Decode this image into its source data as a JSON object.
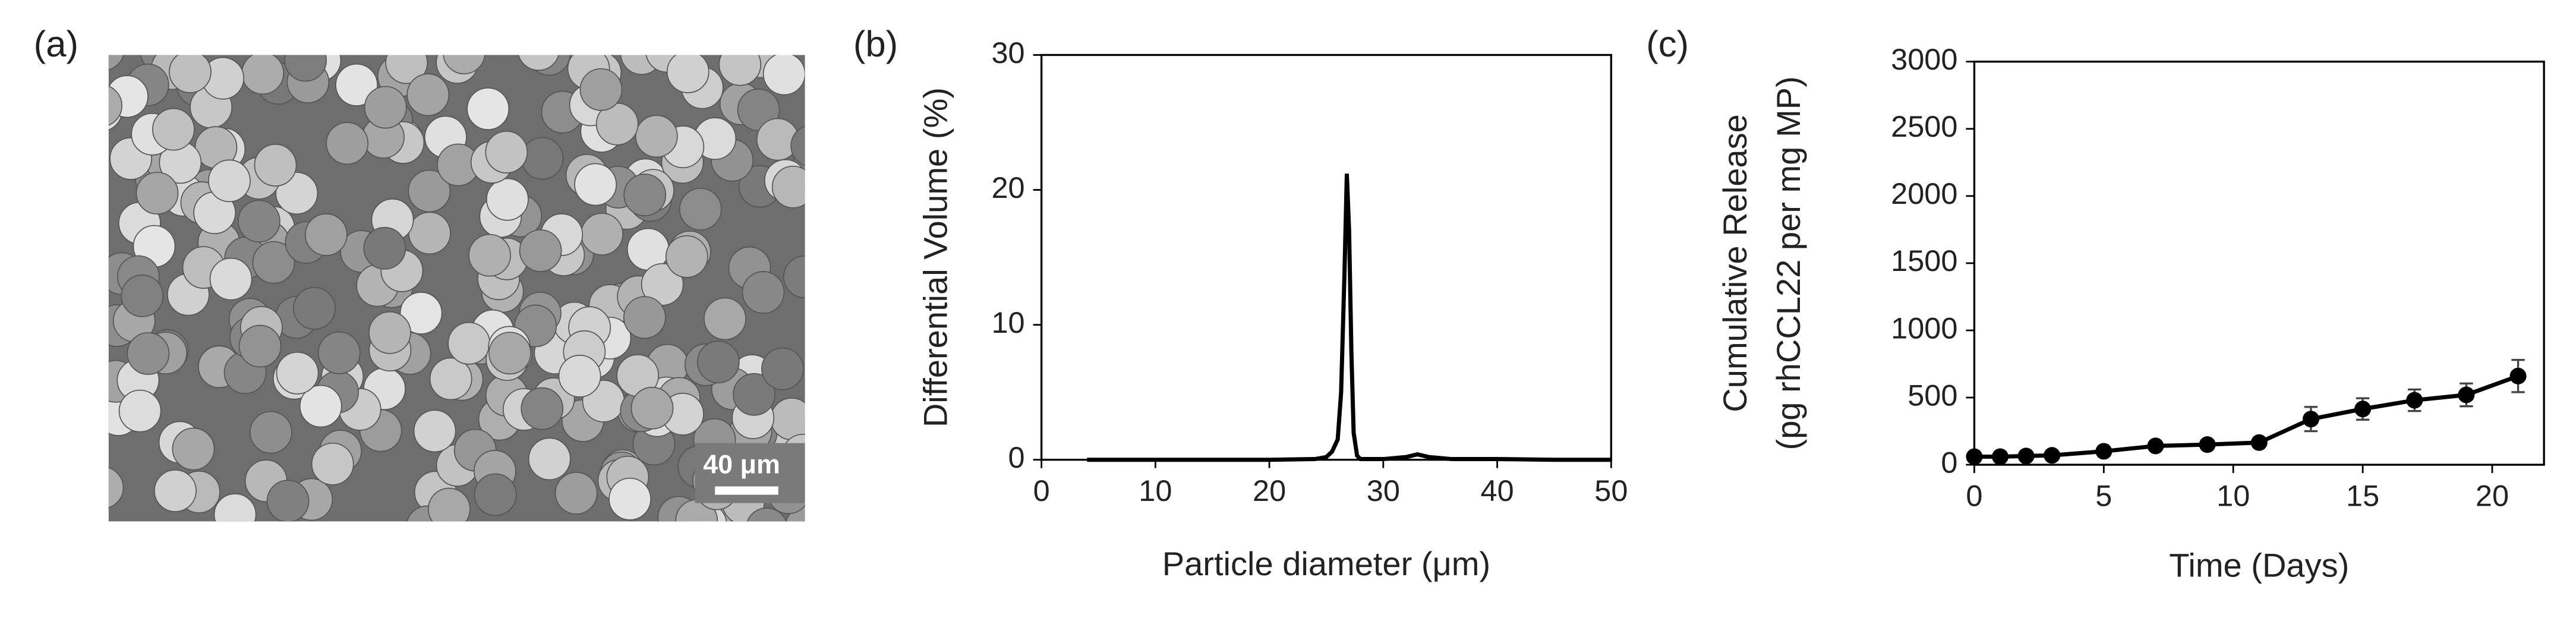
{
  "chart_data": [
    {
      "type": "image",
      "panel_label": "(a)",
      "scale_bar": "40 μm"
    },
    {
      "type": "line",
      "panel_label": "(b)",
      "xlabel": "Particle diameter (μm)",
      "ylabel": [
        "Differential Volume (%)"
      ],
      "x": [
        4,
        10,
        20,
        24,
        25,
        25.5,
        26,
        26.3,
        26.6,
        26.8,
        27,
        27.2,
        27.4,
        27.7,
        28,
        30,
        32,
        33,
        34,
        36,
        40,
        45,
        50
      ],
      "series": [
        {
          "color": "#000000",
          "values": [
            0,
            0,
            0,
            0.05,
            0.2,
            0.6,
            1.5,
            5,
            14,
            21.2,
            17,
            8,
            2,
            0.3,
            0.05,
            0.05,
            0.2,
            0.4,
            0.2,
            0.05,
            0.05,
            0,
            0
          ]
        }
      ],
      "xlim": [
        0,
        50
      ],
      "xticks": [
        0,
        10,
        20,
        30,
        40,
        50
      ],
      "ylim": [
        0,
        30
      ],
      "yticks": [
        0,
        10,
        20,
        30
      ]
    },
    {
      "type": "errorline",
      "panel_label": "(c)",
      "xlabel": "Time (Days)",
      "ylabel": [
        "Cumulative Release",
        "(pg rhCCL22 per mg MP)"
      ],
      "x": [
        0,
        1,
        2,
        3,
        5,
        7,
        9,
        11,
        13,
        15,
        17,
        19,
        21
      ],
      "series": [
        {
          "color": "#000000",
          "values": [
            60,
            60,
            65,
            70,
            100,
            140,
            150,
            165,
            340,
            415,
            480,
            520,
            660
          ],
          "errors": [
            0,
            0,
            0,
            0,
            0,
            10,
            10,
            10,
            90,
            80,
            80,
            85,
            120
          ]
        }
      ],
      "xlim": [
        0,
        22
      ],
      "xticks": [
        0,
        5,
        10,
        15,
        20
      ],
      "ylim": [
        0,
        3000
      ],
      "yticks": [
        0,
        500,
        1000,
        1500,
        2000,
        2500,
        3000
      ]
    }
  ]
}
